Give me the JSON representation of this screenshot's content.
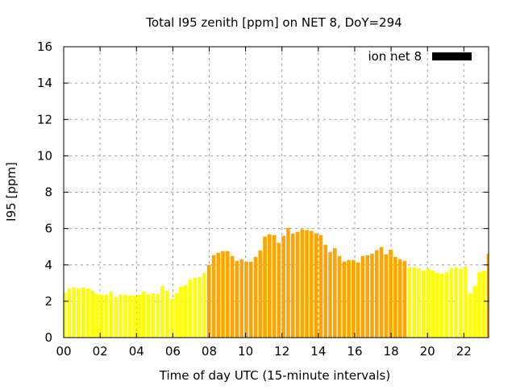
{
  "chart_data": {
    "type": "bar",
    "title": "Total I95 zenith [ppm] on NET 8, DoY=294",
    "xlabel": "Time of day UTC (15-minute intervals)",
    "ylabel": "I95 [ppm]",
    "xlim": [
      0,
      23.3
    ],
    "ylim": [
      0,
      16
    ],
    "xticks": [
      "00",
      "02",
      "04",
      "06",
      "08",
      "10",
      "12",
      "14",
      "16",
      "18",
      "20",
      "22"
    ],
    "yticks": [
      "0",
      "2",
      "4",
      "6",
      "8",
      "10",
      "12",
      "14",
      "16"
    ],
    "grid": true,
    "legend": {
      "label": "ion net 8",
      "placement": "top-right"
    },
    "interval_hours": 0.25,
    "threshold": 4,
    "colors": {
      "low": "#ffff00",
      "high": "#ffa500",
      "legend": "#000000"
    },
    "values": [
      2.47,
      2.71,
      2.76,
      2.71,
      2.76,
      2.71,
      2.58,
      2.4,
      2.36,
      2.36,
      2.53,
      2.22,
      2.36,
      2.36,
      2.31,
      2.31,
      2.36,
      2.53,
      2.36,
      2.44,
      2.4,
      2.84,
      2.58,
      2.13,
      2.44,
      2.8,
      2.89,
      3.2,
      3.29,
      3.33,
      3.56,
      4.0,
      4.53,
      4.67,
      4.76,
      4.76,
      4.49,
      4.22,
      4.31,
      4.18,
      4.18,
      4.44,
      4.8,
      5.56,
      5.69,
      5.64,
      5.2,
      5.6,
      6.04,
      5.73,
      5.82,
      5.96,
      5.91,
      5.87,
      5.73,
      5.64,
      5.11,
      4.71,
      4.93,
      4.49,
      4.18,
      4.27,
      4.27,
      4.13,
      4.49,
      4.53,
      4.62,
      4.8,
      4.98,
      4.58,
      4.84,
      4.44,
      4.31,
      4.22,
      3.87,
      3.87,
      3.82,
      3.69,
      3.78,
      3.69,
      3.56,
      3.51,
      3.6,
      3.82,
      3.87,
      3.78,
      3.91,
      2.44,
      2.84,
      3.6,
      3.69,
      4.62
    ]
  }
}
